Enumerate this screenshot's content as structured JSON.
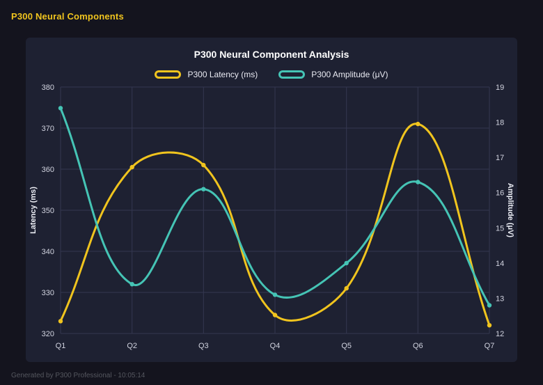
{
  "page": {
    "header": "P300 Neural Components",
    "footer": "Generated by P300 Professional - 10:05:14"
  },
  "colors": {
    "page_bg": "#14141e",
    "card_bg": "#1e2132",
    "accent_gold": "#f0c41e",
    "accent_teal": "#45c4b5",
    "grid": "#343850",
    "tick_text": "#d2d4e0",
    "axis_title_text": "#eceef5",
    "title_text": "#ffffff",
    "footer_text": "#55575f"
  },
  "chart_data": {
    "type": "line",
    "title": "P300 Neural Component Analysis",
    "categories": [
      "Q1",
      "Q2",
      "Q3",
      "Q4",
      "Q5",
      "Q6",
      "Q7"
    ],
    "series": [
      {
        "name": "P300 Latency (ms)",
        "axis": "left",
        "color": "#f0c41e",
        "values": [
          323,
          360.5,
          361,
          324.5,
          331,
          371,
          322
        ]
      },
      {
        "name": "P300 Amplitude (μV)",
        "axis": "right",
        "color": "#45c4b5",
        "values": [
          18.4,
          13.4,
          16.1,
          13.1,
          14,
          16.3,
          12.8
        ]
      }
    ],
    "left_axis": {
      "label": "Latency (ms)",
      "min": 320,
      "max": 380,
      "step": 10
    },
    "right_axis": {
      "label": "Amplitude (μV)",
      "min": 12,
      "max": 19,
      "step": 1
    },
    "grid": true,
    "legend_position": "top",
    "curve_tension": 0.4
  }
}
